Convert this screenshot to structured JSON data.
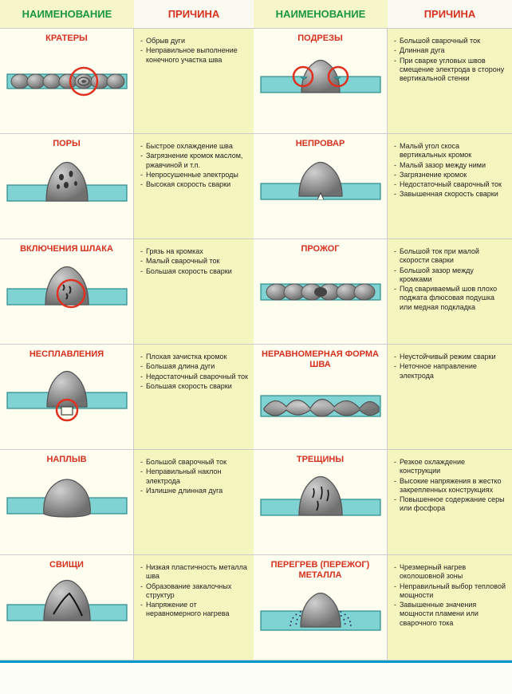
{
  "headers": {
    "name": "НАИМЕНОВАНИЕ",
    "cause": "ПРИЧИНА"
  },
  "colors": {
    "header_name": "#1a9641",
    "header_cause": "#d7301f",
    "header_name_bg": "#f6f6c8",
    "header_cause_bg": "#fafaf0",
    "cell_name_bg": "#fdfdf0",
    "cell_cause_bg": "#f5f5c0",
    "border": "#0099cc",
    "title": "#d7301f",
    "plate": "#7fd3d3",
    "plate_stroke": "#2a8a8a",
    "metal_light": "#d0d0d0",
    "metal_mid": "#a0a0a0",
    "metal_dark": "#707070",
    "circle": "#e03020"
  },
  "font": {
    "header_size": 13,
    "title_size": 11,
    "cause_size": 9
  },
  "defects": [
    {
      "title": "КРАТЕРЫ",
      "diagram": "craters",
      "causes": [
        "Обрыв дуги",
        "Неправильное выполнение конечного участка шва"
      ]
    },
    {
      "title": "ПОДРЕЗЫ",
      "diagram": "undercuts",
      "causes": [
        "Большой сварочный ток",
        "Длинная дуга",
        "При сварке угловых швов смещение электрода в сторону вертикальной стенки"
      ]
    },
    {
      "title": "ПОРЫ",
      "diagram": "pores",
      "causes": [
        "Быстрое охлаждение шва",
        "Загрязнение кромок маслом, ржавчиной и т.п.",
        "Непросушенные электроды",
        "Высокая скорость сварки"
      ]
    },
    {
      "title": "НЕПРОВАР",
      "diagram": "nonfusion",
      "causes": [
        "Малый угол скоса вертикальных кромок",
        "Малый зазор между ними",
        "Загрязнение кромок",
        "Недостаточный сварочный ток",
        "Завышенная скорость сварки"
      ]
    },
    {
      "title": "ВКЛЮЧЕНИЯ ШЛАКА",
      "diagram": "slag",
      "causes": [
        "Грязь на кромках",
        "Малый сварочный ток",
        "Большая скорость сварки"
      ]
    },
    {
      "title": "ПРОЖОГ",
      "diagram": "burnthrough",
      "causes": [
        "Большой ток при малой скорости сварки",
        "Большой зазор между кромками",
        "Под свариваемый шов плохо поджата флюсовая подушка или медная подкладка"
      ]
    },
    {
      "title": "НЕСПЛАВЛЕНИЯ",
      "diagram": "lackfusion",
      "causes": [
        "Плохая зачистка кромок",
        "Большая длина дуги",
        "Недостаточный сварочный ток",
        "Большая скорость сварки"
      ]
    },
    {
      "title": "НЕРАВНОМЕРНАЯ ФОРМА ШВА",
      "diagram": "uneven",
      "two": true,
      "causes": [
        "Неустойчивый режим сварки",
        "Неточное направление электрода"
      ]
    },
    {
      "title": "НАПЛЫВ",
      "diagram": "overlap",
      "causes": [
        "Большой сварочный ток",
        "Неправильный наклон электрода",
        "Излишне длинная дуга"
      ]
    },
    {
      "title": "ТРЕЩИНЫ",
      "diagram": "cracks",
      "causes": [
        "Резкое охлаждение конструкции",
        "Высокие напряжения в жестко закрепленных конструкциях",
        "Повышенное содержание серы или фосфора"
      ]
    },
    {
      "title": "СВИЩИ",
      "diagram": "fistula",
      "causes": [
        "Низкая пластичность металла шва",
        "Образование закалочных структур",
        "Напряжение от неравномерного нагрева"
      ]
    },
    {
      "title": "ПЕРЕГРЕВ (ПЕРЕЖОГ) МЕТАЛЛА",
      "diagram": "overheat",
      "two": true,
      "causes": [
        "Чрезмерный нагрев околошовной зоны",
        "Неправильный выбор тепловой мощности",
        "Завышенные значения мощности пламени или сварочного тока"
      ]
    }
  ]
}
